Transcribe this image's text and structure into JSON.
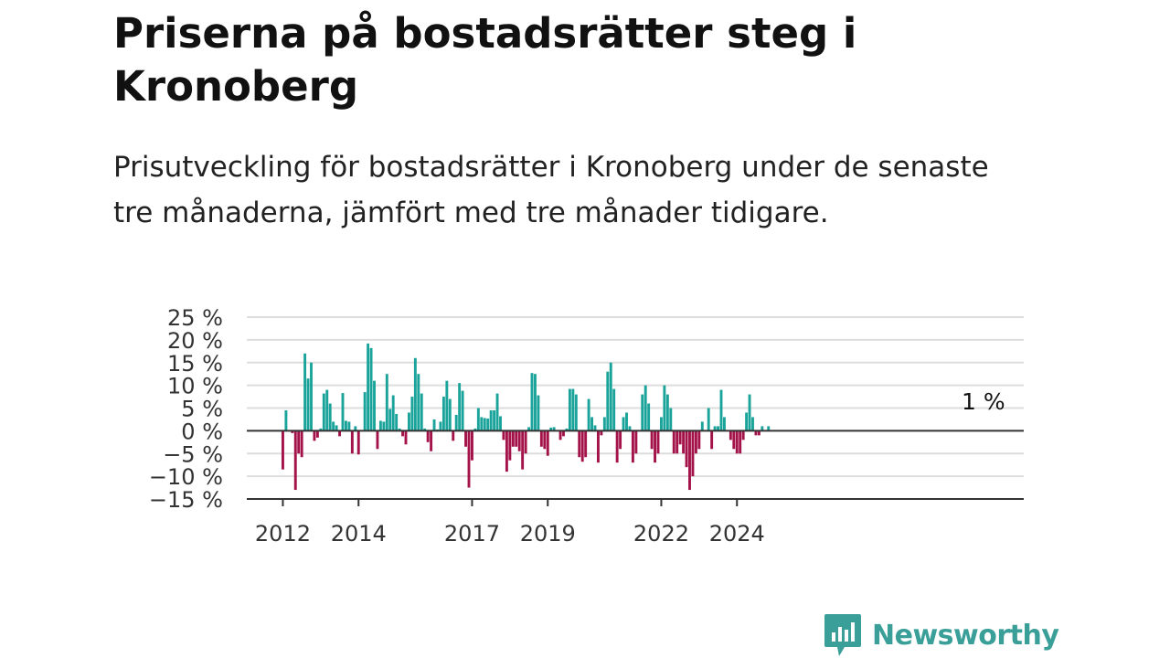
{
  "title": "Priserna på bostadsrätter steg i Kronoberg",
  "subtitle": "Prisutveckling för bostadsrätter i Kronoberg under de senaste tre månaderna, jämfört med tre månader tidigare.",
  "brand": {
    "name": "Newsworthy",
    "color": "#3a9f98"
  },
  "colors": {
    "positive": "#1aa39a",
    "negative": "#a4124a",
    "grid": "#dddddd",
    "zero_line": "#333333"
  },
  "chart_data": {
    "type": "bar",
    "title": "Priserna på bostadsrätter steg i Kronoberg",
    "ylim": [
      -15,
      25
    ],
    "y_ticks": [
      25,
      20,
      15,
      10,
      5,
      0,
      -5,
      -10,
      -15
    ],
    "y_tick_labels": [
      "25 %",
      "20 %",
      "15 %",
      "10 %",
      "5 %",
      "0 %",
      "−5 %",
      "−10 %",
      "−15 %"
    ],
    "x_tick_labels": [
      "2012",
      "2014",
      "2017",
      "2019",
      "2022",
      "2024"
    ],
    "x_tick_dates": [
      "2012-01",
      "2014-01",
      "2017-01",
      "2019-01",
      "2022-01",
      "2024-01"
    ],
    "x_start": "2012-01",
    "grid": true,
    "last_value_label": "1 %",
    "values": [
      -8.5,
      4.5,
      0,
      -0.5,
      -13,
      -5,
      -5.8,
      17,
      11.5,
      15,
      -2.2,
      -1.5,
      0.5,
      8.2,
      9,
      6,
      2,
      1.2,
      -1.2,
      8.3,
      2.2,
      2,
      -5,
      1,
      -5.2,
      0,
      8.5,
      19.2,
      18.2,
      11,
      -4,
      2.2,
      2,
      12.5,
      4.8,
      7.8,
      3.7,
      0.5,
      -1.2,
      -3,
      4,
      7.5,
      16,
      12.5,
      8.2,
      0.5,
      -2.5,
      -4.5,
      2.5,
      0.3,
      2,
      7.5,
      11,
      7,
      -2.2,
      3.5,
      10.5,
      8.8,
      -3.5,
      -12.5,
      -6.5,
      0.5,
      5,
      3,
      2.8,
      2.7,
      4.5,
      4.5,
      8.2,
      3.2,
      -2,
      -9,
      -6.5,
      -3.5,
      -3.5,
      -4.5,
      -8.5,
      -5,
      0.8,
      12.7,
      12.5,
      7.8,
      -3.5,
      -4,
      -5.5,
      0.7,
      0.8,
      0,
      -2,
      -1.2,
      0.5,
      9.2,
      9.2,
      8,
      -5.8,
      -6.8,
      -5.8,
      7,
      3,
      1.2,
      -7,
      -1,
      3,
      13,
      15,
      9.2,
      -7,
      -4,
      3,
      4,
      1,
      -7,
      -5,
      0,
      8,
      10,
      6,
      -4,
      -7,
      -5,
      3,
      10,
      8,
      5,
      -5,
      -5,
      -3,
      -5,
      -8,
      -13,
      -10,
      -5,
      -4,
      2,
      0,
      5,
      -4,
      1,
      1,
      9,
      3,
      0,
      -2,
      -4,
      -5,
      -5,
      -2,
      4,
      8,
      3,
      -1,
      -1,
      1,
      0,
      1
    ]
  }
}
